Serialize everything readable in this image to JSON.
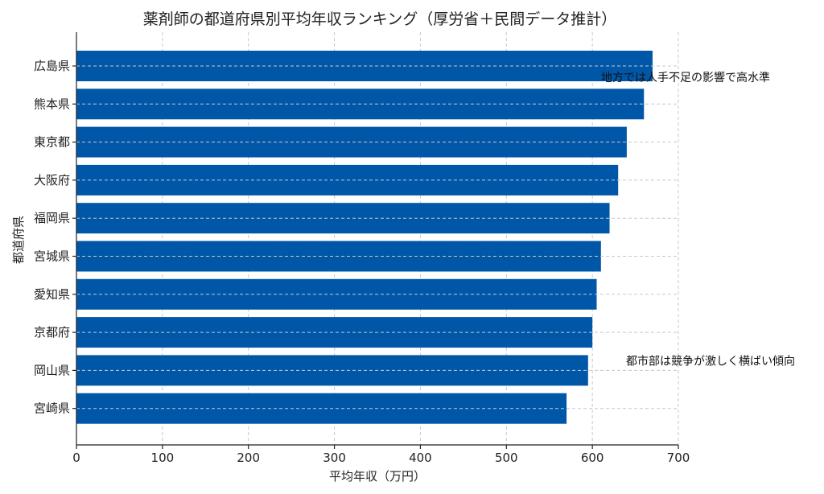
{
  "chart_data": {
    "type": "bar",
    "orientation": "horizontal",
    "title": "薬剤師の都道府県別平均年収ランキング（厚労省＋民間データ推計）",
    "xlabel": "平均年収（万円）",
    "ylabel": "都道府県",
    "xlim": [
      0,
      700
    ],
    "xticks": [
      0,
      100,
      200,
      300,
      400,
      500,
      600,
      700
    ],
    "grid": true,
    "bar_color": "#0057A8",
    "categories": [
      "広島県",
      "熊本県",
      "東京都",
      "大阪府",
      "福岡県",
      "宮城県",
      "愛知県",
      "京都府",
      "岡山県",
      "宮崎県"
    ],
    "values": [
      670,
      660,
      640,
      630,
      620,
      610,
      605,
      600,
      595,
      570
    ],
    "annotations": [
      {
        "text": "地方では人手不足の影響で高水準",
        "category": "広島県"
      },
      {
        "text": "都市部は競争が激しく横ばい傾向",
        "category": "岡山県"
      }
    ]
  }
}
